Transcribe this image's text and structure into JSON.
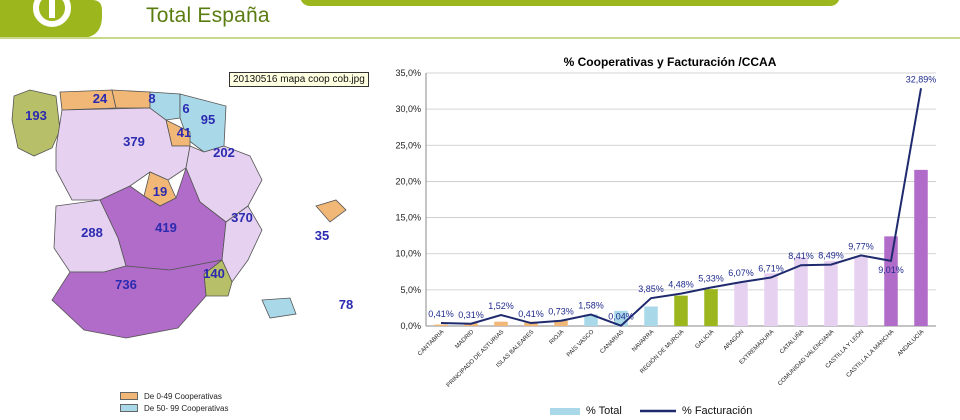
{
  "header": {
    "subtitle": "Total España",
    "colors": {
      "brand": "#9cb61e",
      "text": "#5a7d12"
    }
  },
  "map": {
    "regions": [
      {
        "name": "Galicia",
        "value": "193",
        "color": "#b8bf69"
      },
      {
        "name": "Asturias",
        "value": "24",
        "color": "#f0b777"
      },
      {
        "name": "Cantabria",
        "value": "8",
        "color": "#f0b777"
      },
      {
        "name": "País Vasco",
        "value": "6",
        "color": "#a9d8e8"
      },
      {
        "name": "Navarra",
        "value": "95",
        "color": "#a9d8e8"
      },
      {
        "name": "La Rioja",
        "value": "41",
        "color": "#f0b777"
      },
      {
        "name": "Castilla y León",
        "value": "379",
        "color": "#e6d2f0"
      },
      {
        "name": "Aragón",
        "value": "202",
        "color": "#e6d2f0"
      },
      {
        "name": "Madrid",
        "value": "19",
        "color": "#f0b777"
      },
      {
        "name": "Castilla-La Mancha",
        "value": "419",
        "color": "#b06cc8"
      },
      {
        "name": "Extremadura",
        "value": "288",
        "color": "#e6d2f0"
      },
      {
        "name": "Comunidad Valenciana",
        "value": "370",
        "color": "#e6d2f0"
      },
      {
        "name": "Murcia",
        "value": "140",
        "color": "#b8bf69"
      },
      {
        "name": "Andalucía",
        "value": "736",
        "color": "#b06cc8"
      },
      {
        "name": "Islas Baleares",
        "value": "35",
        "color": "#f0b777"
      },
      {
        "name": "Canarias",
        "value": "78",
        "color": "#a9d8e8"
      }
    ],
    "tooltip": "20130516 mapa coop cob.jpg",
    "legend": [
      {
        "label": "De 0-49 Cooperativas",
        "color": "#f0b777"
      },
      {
        "label": "De 50- 99 Cooperativas",
        "color": "#a9d8e8"
      }
    ]
  },
  "chart_data": {
    "type": "bar",
    "title": "% Cooperativas y Facturación /CCAA",
    "categories": [
      "CANTABRIA",
      "MADRID",
      "PRINCIPADO DE ASTURIAS",
      "ISLAS BALEARES",
      "RIOJA",
      "PAÍS VASCO",
      "CANARIAS",
      "NAVARRA",
      "REGIÓN DE MURCIA",
      "GALICIA",
      "ARAGÓN",
      "EXTREMADURA",
      "CATALUÑA",
      "COMUNIDAD VALENCIANA",
      "CASTILLA Y LEÓN",
      "CASTILLA LA MANCHA",
      "ANDALUCÍA"
    ],
    "series": [
      {
        "name": "% Total",
        "values": [
          0.2,
          0.4,
          0.6,
          0.6,
          0.8,
          1.6,
          2.1,
          2.7,
          4.2,
          5.1,
          6.0,
          7.3,
          9.5,
          9.0,
          9.6,
          12.4,
          21.6
        ],
        "colors": [
          "#f0b777",
          "#f0b777",
          "#f0b777",
          "#f0b777",
          "#f0b777",
          "#a9d8e8",
          "#a9d8e8",
          "#a9d8e8",
          "#9cb61e",
          "#9cb61e",
          "#e6d2f0",
          "#e6d2f0",
          "#e6d2f0",
          "#e6d2f0",
          "#e6d2f0",
          "#b06cc8",
          "#b06cc8"
        ]
      },
      {
        "name": "% Facturación",
        "values": [
          0.41,
          0.31,
          1.52,
          0.41,
          0.73,
          1.58,
          0.04,
          3.85,
          4.48,
          5.33,
          6.07,
          6.71,
          8.41,
          8.49,
          9.77,
          9.01,
          32.89
        ],
        "color": "#1f2a6e"
      }
    ],
    "labels": [
      "0,41%",
      "0,31%",
      "1,52%",
      "0,41%",
      "0,73%",
      "1,58%",
      "0,04%",
      "3,85%",
      "4,48%",
      "5,33%",
      "6,07%",
      "6,71%",
      "8,41%",
      "8,49%",
      "9,77%",
      "9,01%",
      "32,89%"
    ],
    "yticks": [
      "0,0%",
      "5,0%",
      "10,0%",
      "15,0%",
      "20,0%",
      "25,0%",
      "30,0%",
      "35,0%"
    ],
    "ylim": [
      0,
      35
    ],
    "grid": true,
    "legend_position": "bottom",
    "legend_labels": [
      "% Total",
      "% Facturación"
    ]
  }
}
